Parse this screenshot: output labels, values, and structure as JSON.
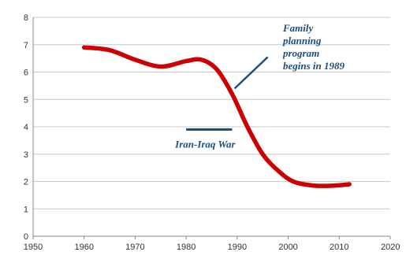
{
  "chart_data": {
    "type": "line",
    "title": "",
    "xlabel": "",
    "ylabel": "",
    "xlim": [
      1950,
      2020
    ],
    "ylim": [
      0,
      8
    ],
    "x_ticks": [
      1950,
      1960,
      1970,
      1980,
      1990,
      2000,
      2010,
      2020
    ],
    "y_ticks": [
      0,
      1,
      2,
      3,
      4,
      5,
      6,
      7,
      8
    ],
    "grid": "horizontal",
    "series": [
      {
        "color": "#cc0000",
        "x": [
          1960,
          1965,
          1970,
          1975,
          1980,
          1983,
          1986,
          1989,
          1992,
          1995,
          1998,
          2001,
          2005,
          2009,
          2012
        ],
        "y": [
          6.9,
          6.8,
          6.45,
          6.2,
          6.4,
          6.45,
          6.1,
          5.2,
          4.0,
          3.0,
          2.4,
          2.0,
          1.85,
          1.85,
          1.9
        ]
      }
    ],
    "annotations": [
      {
        "id": "family-planning",
        "lines": [
          "Family",
          "planning",
          "program",
          "begins in 1989"
        ],
        "color": "#1f4e79"
      },
      {
        "id": "iran-iraq-war",
        "text": "Iran-Iraq War",
        "range": [
          1980,
          1989
        ],
        "y": 3.9,
        "color": "#1f4e79"
      }
    ]
  }
}
